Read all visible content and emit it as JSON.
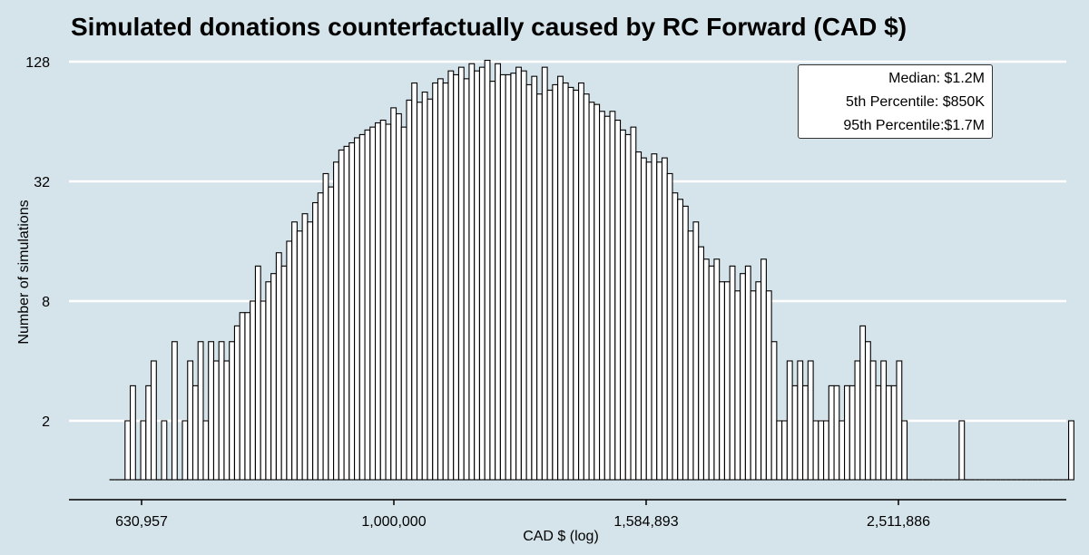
{
  "chart_data": {
    "type": "bar",
    "title": "Simulated donations counterfactually caused by RC Forward (CAD $)",
    "xlabel": "CAD $ (log)",
    "ylabel": "Number of simulations",
    "x_scale": "log",
    "y_scale": "log2",
    "x_ticks": [
      630957,
      1000000,
      1584893,
      2511886
    ],
    "x_tick_labels": [
      "630,957",
      "1,000,000",
      "1,584,893",
      "2,511,886"
    ],
    "y_ticks": [
      2,
      8,
      32,
      128
    ],
    "y_tick_labels": [
      "2",
      "8",
      "32",
      "128"
    ],
    "grid": "horizontal",
    "bin_start": 595000,
    "bin_end": 3460000,
    "counts": [
      0,
      0,
      0,
      2,
      3,
      0,
      2,
      3,
      4,
      0,
      2,
      0,
      5,
      0,
      2,
      4,
      3,
      5,
      2,
      5,
      4,
      5,
      4,
      5,
      6,
      7,
      7,
      8,
      12,
      8,
      10,
      11,
      14,
      12,
      16,
      20,
      18,
      22,
      20,
      25,
      28,
      35,
      30,
      40,
      46,
      48,
      50,
      53,
      55,
      58,
      60,
      63,
      65,
      62,
      75,
      70,
      60,
      82,
      100,
      80,
      90,
      83,
      100,
      105,
      100,
      115,
      110,
      120,
      105,
      125,
      115,
      120,
      130,
      102,
      125,
      110,
      110,
      112,
      120,
      115,
      98,
      108,
      88,
      120,
      92,
      98,
      108,
      100,
      95,
      92,
      100,
      88,
      80,
      78,
      72,
      68,
      72,
      65,
      58,
      55,
      60,
      45,
      42,
      40,
      44,
      40,
      42,
      35,
      28,
      26,
      24,
      18,
      20,
      15,
      13,
      12,
      13,
      10,
      10,
      12,
      9,
      11,
      12,
      9,
      10,
      13,
      9,
      5,
      2,
      2,
      4,
      3,
      4,
      3,
      4,
      2,
      2,
      2,
      3,
      3,
      2,
      3,
      3,
      4,
      6,
      5,
      4,
      3,
      4,
      3,
      3,
      4,
      2,
      0,
      0,
      0,
      0,
      0,
      0,
      0,
      0,
      0,
      0,
      2,
      0,
      0,
      0,
      0,
      0,
      0,
      0,
      0,
      0,
      0,
      0,
      0,
      0,
      0,
      0,
      0,
      0,
      0,
      0,
      0,
      2
    ],
    "annotations": {
      "median": "Median: $1.2M",
      "p5": "5th Percentile: $850K",
      "p95": "95th Percentile:$1.7M"
    },
    "colors": {
      "background": "#d5e3ea",
      "bar_fill": "#ffffff",
      "bar_stroke": "#000000",
      "grid": "#ffffff"
    }
  }
}
